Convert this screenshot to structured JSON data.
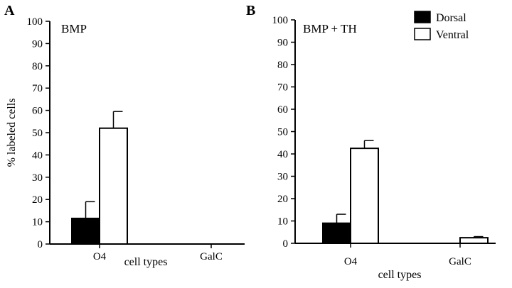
{
  "chart_data": [
    {
      "type": "bar",
      "panel_label": "A",
      "title": "BMP",
      "xlabel": "cell types",
      "ylabel": "% labeled cells",
      "ylim": [
        0,
        100
      ],
      "yticks": [
        "0",
        "10",
        "20",
        "30",
        "40",
        "50",
        "60",
        "70",
        "80",
        "90",
        "100"
      ],
      "categories": [
        "O4",
        "GalC"
      ],
      "series": [
        {
          "name": "Dorsal",
          "color": "#000000",
          "values": [
            11.5,
            0
          ],
          "errors": [
            7.5,
            0
          ]
        },
        {
          "name": "Ventral",
          "color": "#ffffff",
          "values": [
            52,
            0
          ],
          "errors": [
            7.5,
            0
          ]
        }
      ],
      "grid": false
    },
    {
      "type": "bar",
      "panel_label": "B",
      "title": "BMP + TH",
      "xlabel": "cell types",
      "ylabel": "",
      "ylim": [
        0,
        100
      ],
      "yticks": [
        "0",
        "10",
        "20",
        "30",
        "40",
        "50",
        "60",
        "70",
        "80",
        "90",
        "100"
      ],
      "categories": [
        "O4",
        "GalC"
      ],
      "series": [
        {
          "name": "Dorsal",
          "color": "#000000",
          "values": [
            9,
            0
          ],
          "errors": [
            4,
            0
          ]
        },
        {
          "name": "Ventral",
          "color": "#ffffff",
          "values": [
            42.5,
            2.5
          ],
          "errors": [
            3.5,
            0.5
          ]
        }
      ],
      "legend": {
        "placement": "top-right",
        "entries": [
          "Dorsal",
          "Ventral"
        ]
      },
      "grid": false
    }
  ]
}
